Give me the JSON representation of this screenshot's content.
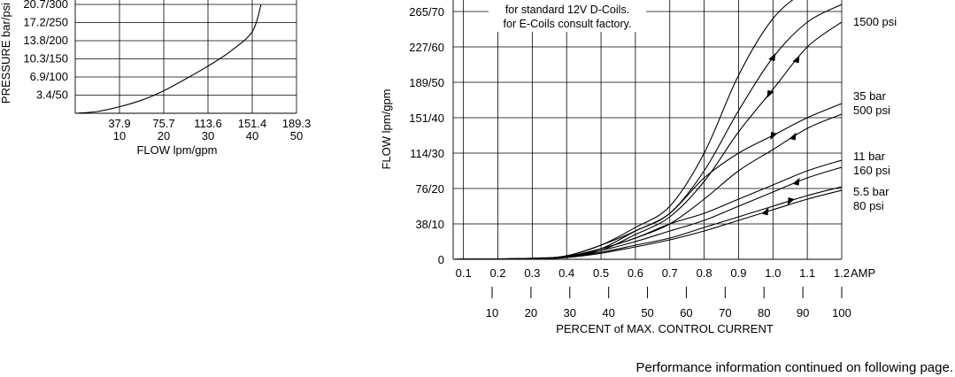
{
  "chart_data": [
    {
      "type": "line",
      "ylabel": "PRESSURE bar/psi",
      "xlabel": "FLOW lpm/gpm",
      "y_ticks": [
        "3.4/50",
        "6.9/100",
        "10.3/150",
        "13.8/200",
        "17.2/250",
        "20.7/300"
      ],
      "x_ticks_lpm": [
        "37.9",
        "75.7",
        "113.6",
        "151.4",
        "189.3"
      ],
      "x_ticks_gpm": [
        "10",
        "20",
        "30",
        "40",
        "50"
      ],
      "xlim_gpm": [
        0,
        50
      ],
      "ylim_psi": [
        0,
        300
      ],
      "grid": true,
      "series": [
        {
          "x": [
            0,
            5,
            10,
            15,
            20,
            25,
            30,
            35,
            40,
            42
          ],
          "y": [
            0,
            5,
            18,
            36,
            62,
            95,
            130,
            170,
            225,
            300
          ]
        }
      ]
    },
    {
      "type": "line",
      "ylabel": "FLOW lpm/gpm",
      "xlabel": "PERCENT of MAX. CONTROL CURRENT",
      "y_ticks": [
        "0",
        "38/10",
        "76/20",
        "114/30",
        "151/40",
        "189/50",
        "227/60",
        "265/70"
      ],
      "x_ticks_amp": [
        "0.1",
        "0.2",
        "0.3",
        "0.4",
        "0.5",
        "0.6",
        "0.7",
        "0.8",
        "0.9",
        "1.0",
        "1.1",
        "1.2"
      ],
      "x_amp_unit": "AMP",
      "x_ticks_percent": [
        "10",
        "20",
        "30",
        "40",
        "50",
        "60",
        "70",
        "80",
        "90",
        "100"
      ],
      "xlim_amp": [
        0.07,
        1.2
      ],
      "ylim_gpm": [
        0,
        70
      ],
      "grid": true,
      "notes": [
        "for standard 12V D-Coils.",
        "for E-Coils consult factory."
      ],
      "curve_labels": [
        {
          "lines": [
            "1500 psi"
          ],
          "y": 70
        },
        {
          "lines": [
            "35 bar",
            "500 psi"
          ],
          "y": 45
        },
        {
          "lines": [
            "11 bar",
            "160 psi"
          ],
          "y": 28
        },
        {
          "lines": [
            "5.5 bar",
            "80 psi"
          ],
          "y": 18
        }
      ],
      "series": [
        {
          "name": "1500 psi",
          "x": [
            0.07,
            0.3,
            0.4,
            0.5,
            0.6,
            0.7,
            0.8,
            0.9,
            1.0,
            1.1,
            1.2
          ],
          "y": [
            0,
            0.3,
            1,
            4,
            9,
            15,
            30,
            52,
            68,
            76,
            80
          ]
        },
        {
          "name": "1500 psi",
          "x": [
            0.07,
            0.3,
            0.4,
            0.5,
            0.6,
            0.7,
            0.8,
            0.9,
            1.0,
            1.1,
            1.2
          ],
          "y": [
            0,
            0.2,
            0.8,
            3,
            8,
            13,
            25,
            42,
            57,
            67,
            72
          ]
        },
        {
          "name": "1500 psi",
          "x": [
            0.07,
            0.3,
            0.4,
            0.5,
            0.6,
            0.7,
            0.8,
            0.9,
            1.0,
            1.1,
            1.2
          ],
          "y": [
            0,
            0.2,
            0.6,
            2.5,
            7,
            12,
            22,
            36,
            48,
            60,
            67
          ]
        },
        {
          "name": "35 bar 500 psi",
          "x": [
            0.07,
            0.3,
            0.4,
            0.5,
            0.6,
            0.7,
            0.8,
            0.9,
            1.0,
            1.1,
            1.2
          ],
          "y": [
            0,
            0.3,
            1,
            4,
            8,
            13,
            23,
            30,
            35,
            40,
            44
          ]
        },
        {
          "name": "35 bar 500 psi",
          "x": [
            0.07,
            0.3,
            0.4,
            0.5,
            0.6,
            0.7,
            0.8,
            0.9,
            1.0,
            1.1,
            1.2
          ],
          "y": [
            0,
            0.2,
            0.8,
            3,
            6,
            10,
            17,
            25,
            31,
            37,
            41
          ]
        },
        {
          "name": "11 bar 160 psi",
          "x": [
            0.07,
            0.3,
            0.4,
            0.5,
            0.6,
            0.7,
            0.8,
            0.9,
            1.0,
            1.1,
            1.2
          ],
          "y": [
            0,
            0.2,
            0.8,
            3,
            6,
            10,
            13,
            17,
            21,
            25,
            28
          ]
        },
        {
          "name": "11 bar 160 psi",
          "x": [
            0.07,
            0.3,
            0.4,
            0.5,
            0.6,
            0.7,
            0.8,
            0.9,
            1.0,
            1.1,
            1.2
          ],
          "y": [
            0,
            0.2,
            0.7,
            2.5,
            5,
            8,
            11,
            15,
            19,
            23,
            26
          ]
        },
        {
          "name": "5.5 bar 80 psi",
          "x": [
            0.07,
            0.3,
            0.4,
            0.5,
            0.6,
            0.7,
            0.8,
            0.9,
            1.0,
            1.1,
            1.2
          ],
          "y": [
            0,
            0.2,
            0.6,
            2,
            4,
            6,
            9,
            12,
            15,
            18,
            20.5
          ]
        },
        {
          "name": "5.5 bar 80 psi",
          "x": [
            0.07,
            0.3,
            0.4,
            0.5,
            0.6,
            0.7,
            0.8,
            0.9,
            1.0,
            1.1,
            1.2
          ],
          "y": [
            0,
            0.1,
            0.5,
            1.7,
            3.5,
            5.5,
            8,
            11,
            14,
            17,
            19.5
          ]
        }
      ]
    }
  ],
  "footer": "Performance information continued on following page."
}
